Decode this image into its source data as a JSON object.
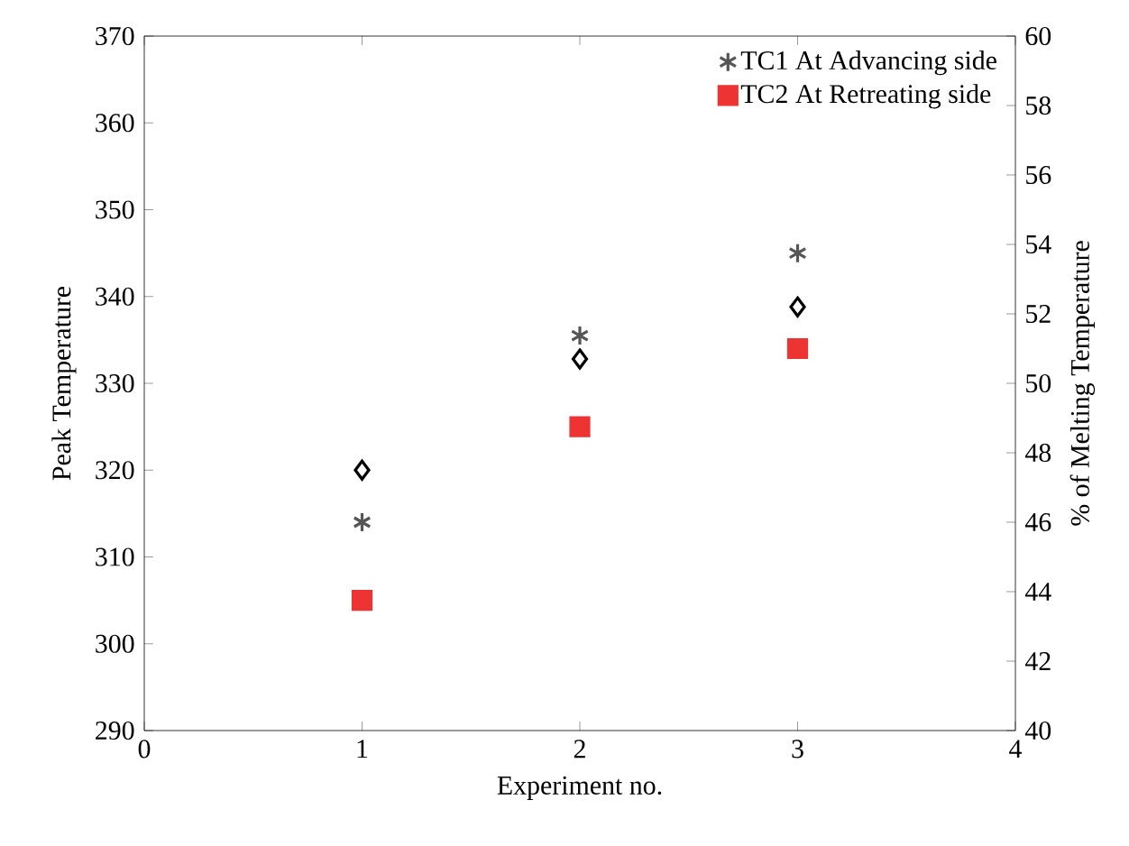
{
  "chart_data": {
    "type": "scatter",
    "xlabel": "Experiment no.",
    "ylabel": "Peak Temperature",
    "y2label": "% of Melting Temperature",
    "x": [
      1,
      2,
      3
    ],
    "series": [
      {
        "name": "TC1 At Advancing side",
        "color": "#555555",
        "marker": "cross",
        "values": [
          314,
          335.5,
          345
        ]
      },
      {
        "name": "TC2 At Retreating side",
        "color": "#ee3333",
        "marker": "square",
        "values": [
          305,
          325,
          334
        ]
      },
      {
        "color": "#000000",
        "marker": "diamond",
        "axis": "y2",
        "values": [
          47.5,
          50.7,
          52.2
        ]
      }
    ],
    "xlim": [
      0,
      4
    ],
    "xticks": [
      0,
      1,
      2,
      3,
      4
    ],
    "ylim": [
      290,
      370
    ],
    "yticks": [
      290,
      300,
      310,
      320,
      330,
      340,
      350,
      360,
      370
    ],
    "y2lim": [
      40,
      60
    ],
    "y2ticks": [
      40,
      42,
      44,
      46,
      48,
      50,
      52,
      54,
      56,
      58,
      60
    ],
    "legend": "top right",
    "grid": false
  }
}
